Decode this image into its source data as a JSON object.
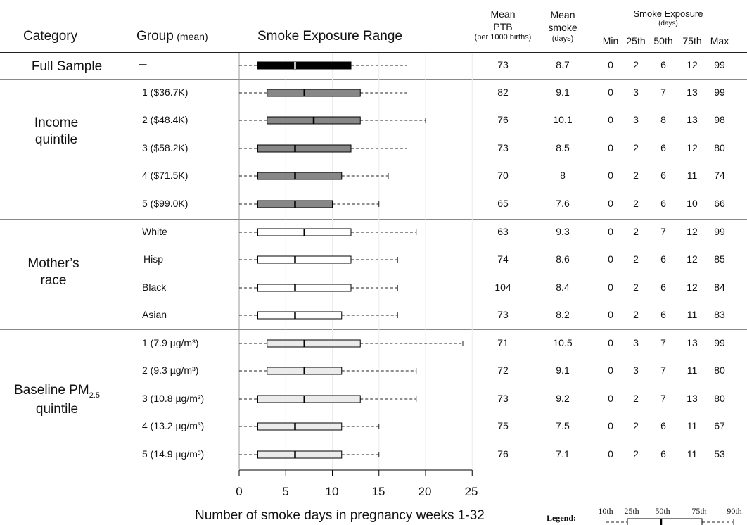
{
  "headers": {
    "category": "Category",
    "group": "Group",
    "group_suffix": "(mean)",
    "range": "Smoke Exposure Range",
    "mean_ptb_l1": "Mean",
    "mean_ptb_l2": "PTB",
    "mean_ptb_l3": "(per 1000 births)",
    "mean_smoke_l1": "Mean",
    "mean_smoke_l2": "smoke",
    "mean_smoke_l3": "(days)",
    "exposure_l1": "Smoke Exposure",
    "exposure_l2": "(days)",
    "col_min": "Min",
    "col_p25": "25th",
    "col_p50": "50th",
    "col_p75": "75th",
    "col_max": "Max"
  },
  "categories": [
    {
      "line1": "Full Sample",
      "line2": ""
    },
    {
      "line1": "Income",
      "line2": "quintile"
    },
    {
      "line1": "Mother’s",
      "line2": "race"
    },
    {
      "line1": "Baseline PM",
      "sub": "2.5",
      "line2": "quintile"
    }
  ],
  "rows": [
    {
      "group": "–",
      "ptb": "73",
      "smoke": "8.7",
      "min": "0",
      "p25": "2",
      "p50": "6",
      "p75": "12",
      "max": "99"
    },
    {
      "group": "1 ($36.7K)",
      "ptb": "82",
      "smoke": "9.1",
      "min": "0",
      "p25": "3",
      "p50": "7",
      "p75": "13",
      "max": "99"
    },
    {
      "group": "2 ($48.4K)",
      "ptb": "76",
      "smoke": "10.1",
      "min": "0",
      "p25": "3",
      "p50": "8",
      "p75": "13",
      "max": "98"
    },
    {
      "group": "3 ($58.2K)",
      "ptb": "73",
      "smoke": "8.5",
      "min": "0",
      "p25": "2",
      "p50": "6",
      "p75": "12",
      "max": "80"
    },
    {
      "group": "4 ($71.5K)",
      "ptb": "70",
      "smoke": "8",
      "min": "0",
      "p25": "2",
      "p50": "6",
      "p75": "11",
      "max": "74"
    },
    {
      "group": "5 ($99.0K)",
      "ptb": "65",
      "smoke": "7.6",
      "min": "0",
      "p25": "2",
      "p50": "6",
      "p75": "10",
      "max": "66"
    },
    {
      "group": "White",
      "ptb": "63",
      "smoke": "9.3",
      "min": "0",
      "p25": "2",
      "p50": "7",
      "p75": "12",
      "max": "99"
    },
    {
      "group": "Hisp",
      "ptb": "74",
      "smoke": "8.6",
      "min": "0",
      "p25": "2",
      "p50": "6",
      "p75": "12",
      "max": "85"
    },
    {
      "group": "Black",
      "ptb": "104",
      "smoke": "8.4",
      "min": "0",
      "p25": "2",
      "p50": "6",
      "p75": "12",
      "max": "84"
    },
    {
      "group": "Asian",
      "ptb": "73",
      "smoke": "8.2",
      "min": "0",
      "p25": "2",
      "p50": "6",
      "p75": "11",
      "max": "83"
    },
    {
      "group": "1 (7.9 µg/m³)",
      "ptb": "71",
      "smoke": "10.5",
      "min": "0",
      "p25": "3",
      "p50": "7",
      "p75": "13",
      "max": "99"
    },
    {
      "group": "2 (9.3 µg/m³)",
      "ptb": "72",
      "smoke": "9.1",
      "min": "0",
      "p25": "3",
      "p50": "7",
      "p75": "11",
      "max": "80"
    },
    {
      "group": "3 (10.8 µg/m³)",
      "ptb": "73",
      "smoke": "9.2",
      "min": "0",
      "p25": "2",
      "p50": "7",
      "p75": "13",
      "max": "80"
    },
    {
      "group": "4 (13.2 µg/m³)",
      "ptb": "75",
      "smoke": "7.5",
      "min": "0",
      "p25": "2",
      "p50": "6",
      "p75": "11",
      "max": "67"
    },
    {
      "group": "5 (14.9 µg/m³)",
      "ptb": "76",
      "smoke": "7.1",
      "min": "0",
      "p25": "2",
      "p50": "6",
      "p75": "11",
      "max": "53"
    }
  ],
  "chart_data": {
    "type": "boxplot",
    "xlabel": "Number of smoke days in pregnancy weeks 1-32",
    "xlim": [
      0,
      25
    ],
    "xticks": [
      "0",
      "5",
      "10",
      "15",
      "20",
      "25"
    ],
    "reference_line_x": 6,
    "box_colors": {
      "full": "#000000",
      "income": "#878787",
      "race": "#ffffff",
      "pm": "#ebebeb"
    },
    "series": [
      {
        "p10": 0,
        "p25": 2,
        "p50": 6,
        "p75": 12,
        "p90": 18,
        "fill": "full"
      },
      {
        "p10": 0,
        "p25": 3,
        "p50": 7,
        "p75": 13,
        "p90": 18,
        "fill": "income"
      },
      {
        "p10": 0,
        "p25": 3,
        "p50": 8,
        "p75": 13,
        "p90": 20,
        "fill": "income"
      },
      {
        "p10": 0,
        "p25": 2,
        "p50": 6,
        "p75": 12,
        "p90": 18,
        "fill": "income"
      },
      {
        "p10": 0,
        "p25": 2,
        "p50": 6,
        "p75": 11,
        "p90": 16,
        "fill": "income"
      },
      {
        "p10": 0,
        "p25": 2,
        "p50": 6,
        "p75": 10,
        "p90": 15,
        "fill": "income"
      },
      {
        "p10": 0,
        "p25": 2,
        "p50": 7,
        "p75": 12,
        "p90": 19,
        "fill": "race"
      },
      {
        "p10": 0,
        "p25": 2,
        "p50": 6,
        "p75": 12,
        "p90": 17,
        "fill": "race"
      },
      {
        "p10": 0,
        "p25": 2,
        "p50": 6,
        "p75": 12,
        "p90": 17,
        "fill": "race"
      },
      {
        "p10": 0,
        "p25": 2,
        "p50": 6,
        "p75": 11,
        "p90": 17,
        "fill": "race"
      },
      {
        "p10": 0,
        "p25": 3,
        "p50": 7,
        "p75": 13,
        "p90": 24,
        "fill": "pm"
      },
      {
        "p10": 0,
        "p25": 3,
        "p50": 7,
        "p75": 11,
        "p90": 19,
        "fill": "pm"
      },
      {
        "p10": 0,
        "p25": 2,
        "p50": 7,
        "p75": 13,
        "p90": 19,
        "fill": "pm"
      },
      {
        "p10": 0,
        "p25": 2,
        "p50": 6,
        "p75": 11,
        "p90": 15,
        "fill": "pm"
      },
      {
        "p10": 0,
        "p25": 2,
        "p50": 6,
        "p75": 11,
        "p90": 15,
        "fill": "pm"
      }
    ]
  },
  "legend": {
    "title": "Legend:",
    "labels": [
      "10th",
      "25th",
      "50th",
      "75th",
      "90th"
    ]
  }
}
